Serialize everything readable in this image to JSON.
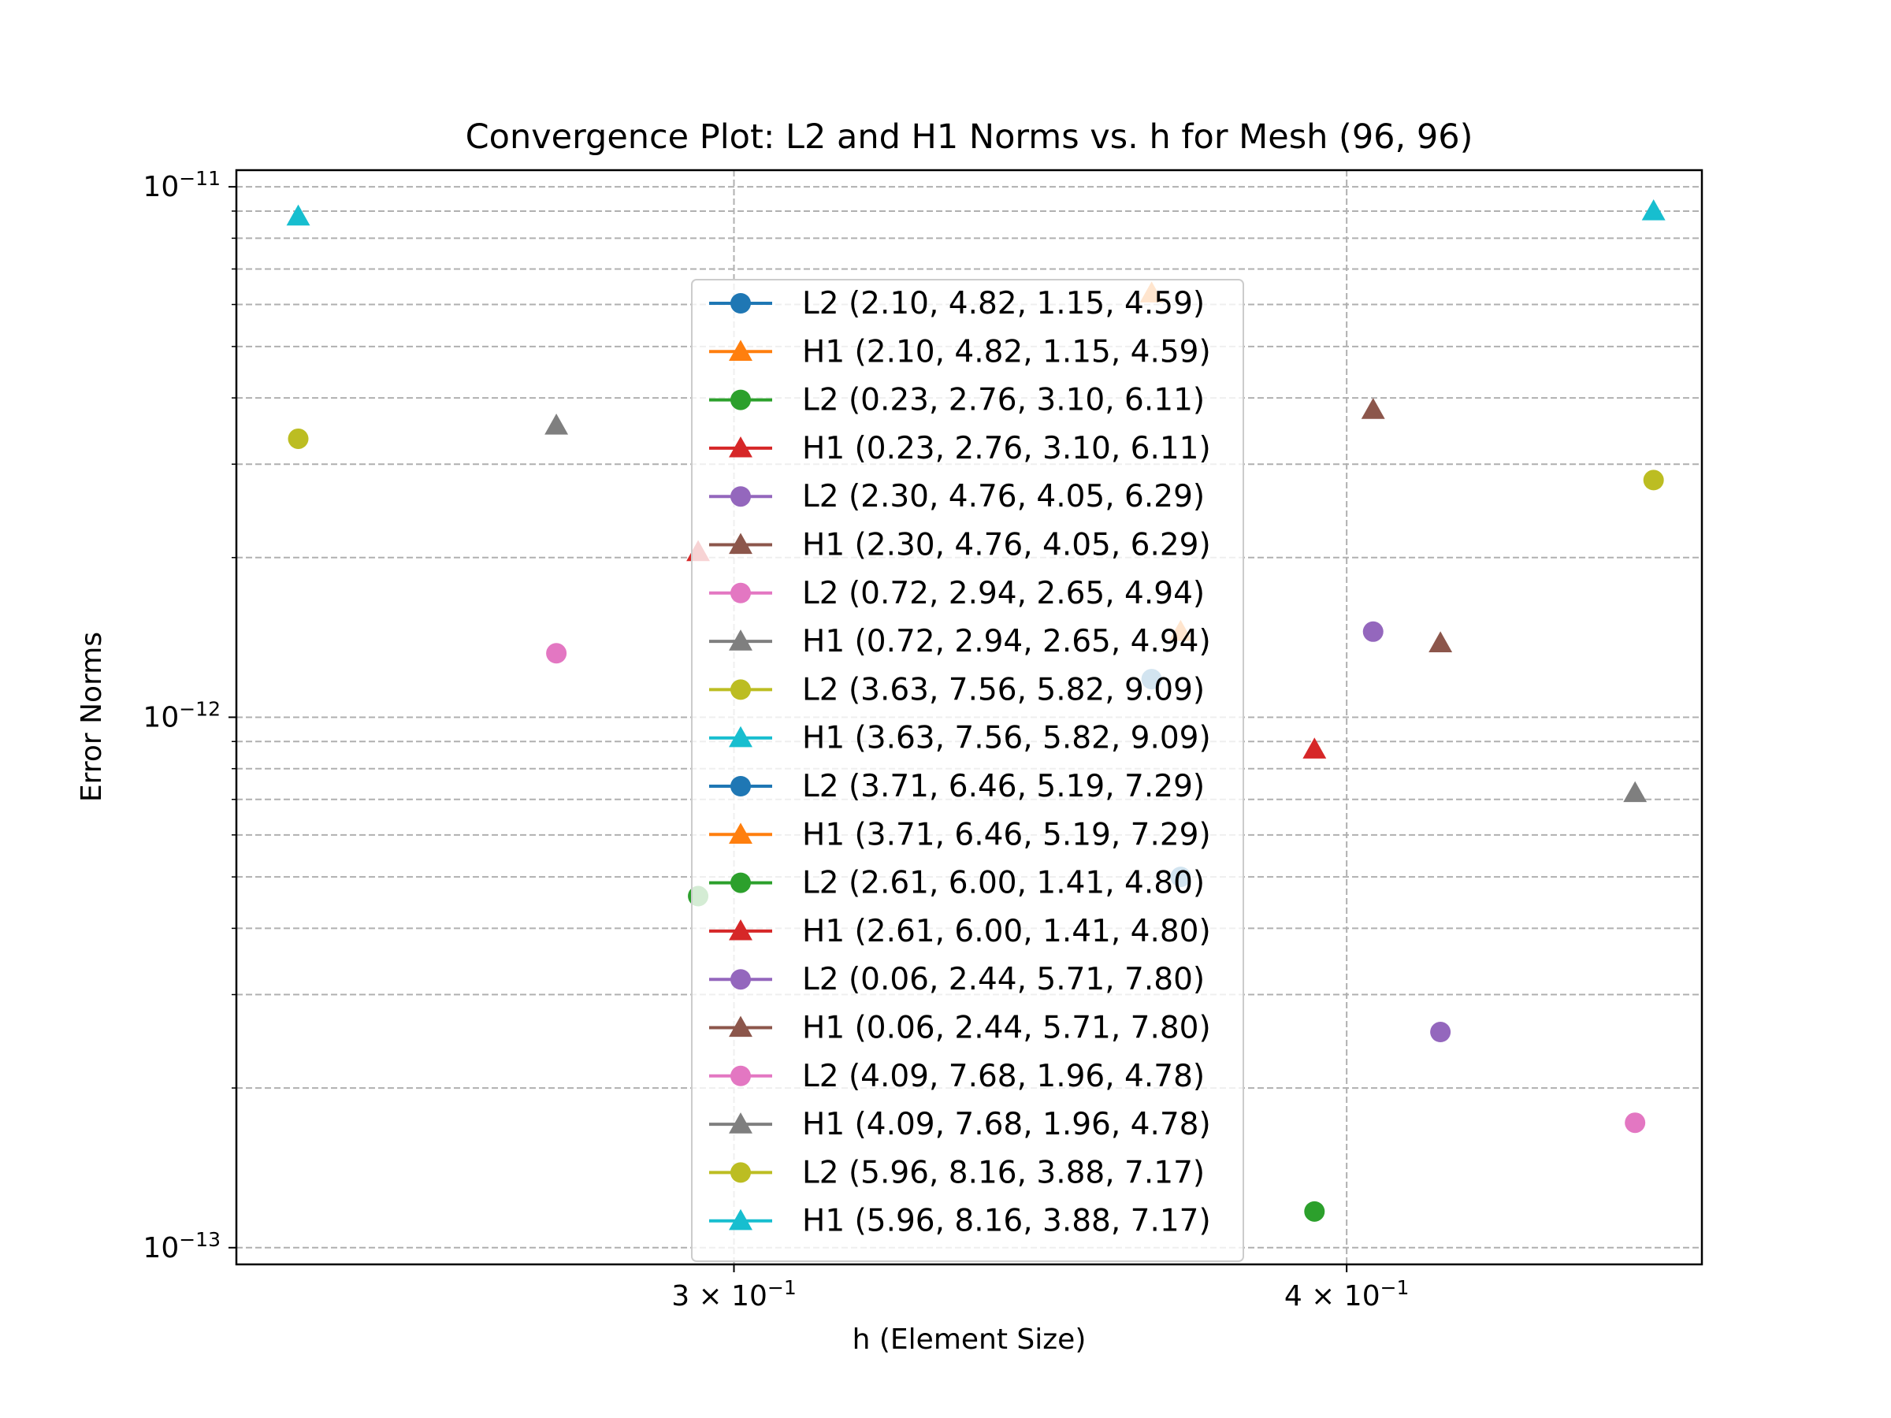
{
  "chart_data": {
    "type": "scatter",
    "title": "Convergence Plot: L2 and H1 Norms vs. h for Mesh (96, 96)",
    "xlabel": "h (Element Size)",
    "ylabel": "Error Norms",
    "xscale": "log",
    "yscale": "log",
    "xlim": [
      0.2375,
      0.4726
    ],
    "ylim": [
      9.3e-14,
      1.075e-11
    ],
    "x_ticks": [
      {
        "value": 0.3,
        "label": "3 × 10",
        "exp": "−1"
      },
      {
        "value": 0.4,
        "label": "4 × 10",
        "exp": "−1"
      }
    ],
    "y_ticks": [
      {
        "value": 1e-13,
        "label": "10",
        "exp": "−13"
      },
      {
        "value": 1e-12,
        "label": "10",
        "exp": "−12"
      },
      {
        "value": 1e-11,
        "label": "10",
        "exp": "−11"
      }
    ],
    "grid": true,
    "legend_position": "center",
    "series": [
      {
        "name": "L2 (2.10, 4.82, 1.15, 4.59)",
        "color": "#1f77b4",
        "marker": "circle",
        "x": [
          0.365
        ],
        "y": [
          1.18e-12
        ]
      },
      {
        "name": "H1 (2.10, 4.82, 1.15, 4.59)",
        "color": "#ff7f0e",
        "marker": "triangle",
        "x": [
          0.365
        ],
        "y": [
          6.3e-12
        ]
      },
      {
        "name": "L2 (0.23, 2.76, 3.10, 6.11)",
        "color": "#2ca02c",
        "marker": "circle",
        "x": [
          0.295
        ],
        "y": [
          4.6e-13
        ]
      },
      {
        "name": "H1 (0.23, 2.76, 3.10, 6.11)",
        "color": "#d62728",
        "marker": "triangle",
        "x": [
          0.295
        ],
        "y": [
          2.05e-12
        ]
      },
      {
        "name": "L2 (2.30, 4.76, 4.05, 6.29)",
        "color": "#9467bd",
        "marker": "circle",
        "x": [
          0.405
        ],
        "y": [
          1.45e-12
        ]
      },
      {
        "name": "H1 (2.30, 4.76, 4.05, 6.29)",
        "color": "#8c564b",
        "marker": "triangle",
        "x": [
          0.405
        ],
        "y": [
          3.8e-12
        ]
      },
      {
        "name": "L2 (0.72, 2.94, 2.65, 4.94)",
        "color": "#e377c2",
        "marker": "circle",
        "x": [
          0.276
        ],
        "y": [
          1.32e-12
        ]
      },
      {
        "name": "H1 (0.72, 2.94, 2.65, 4.94)",
        "color": "#7f7f7f",
        "marker": "triangle",
        "x": [
          0.276
        ],
        "y": [
          3.55e-12
        ]
      },
      {
        "name": "L2 (3.63, 7.56, 5.82, 9.09)",
        "color": "#bcbd22",
        "marker": "circle",
        "x": [
          0.2445
        ],
        "y": [
          3.35e-12
        ]
      },
      {
        "name": "H1 (3.63, 7.56, 5.82, 9.09)",
        "color": "#17becf",
        "marker": "triangle",
        "x": [
          0.2445
        ],
        "y": [
          8.8e-12
        ]
      },
      {
        "name": "L2 (3.71, 6.46, 5.19, 7.29)",
        "color": "#1f77b4",
        "marker": "circle",
        "x": [
          0.37
        ],
        "y": [
          5e-13
        ]
      },
      {
        "name": "H1 (3.71, 6.46, 5.19, 7.29)",
        "color": "#ff7f0e",
        "marker": "triangle",
        "x": [
          0.37
        ],
        "y": [
          1.45e-12
        ]
      },
      {
        "name": "L2 (2.61, 6.00, 1.41, 4.80)",
        "color": "#2ca02c",
        "marker": "circle",
        "x": [
          0.394
        ],
        "y": [
          1.17e-13
        ]
      },
      {
        "name": "H1 (2.61, 6.00, 1.41, 4.80)",
        "color": "#d62728",
        "marker": "triangle",
        "x": [
          0.394
        ],
        "y": [
          8.7e-13
        ]
      },
      {
        "name": "L2 (0.06, 2.44, 5.71, 7.80)",
        "color": "#9467bd",
        "marker": "circle",
        "x": [
          0.418
        ],
        "y": [
          2.55e-13
        ]
      },
      {
        "name": "H1 (0.06, 2.44, 5.71, 7.80)",
        "color": "#8c564b",
        "marker": "triangle",
        "x": [
          0.418
        ],
        "y": [
          1.38e-12
        ]
      },
      {
        "name": "L2 (4.09, 7.68, 1.96, 4.78)",
        "color": "#e377c2",
        "marker": "circle",
        "x": [
          0.458
        ],
        "y": [
          1.72e-13
        ]
      },
      {
        "name": "H1 (4.09, 7.68, 1.96, 4.78)",
        "color": "#7f7f7f",
        "marker": "triangle",
        "x": [
          0.458
        ],
        "y": [
          7.2e-13
        ]
      },
      {
        "name": "L2 (5.96, 8.16, 3.88, 7.17)",
        "color": "#bcbd22",
        "marker": "circle",
        "x": [
          0.462
        ],
        "y": [
          2.8e-12
        ]
      },
      {
        "name": "H1 (5.96, 8.16, 3.88, 7.17)",
        "color": "#17becf",
        "marker": "triangle",
        "x": [
          0.462
        ],
        "y": [
          9e-12
        ]
      }
    ]
  }
}
